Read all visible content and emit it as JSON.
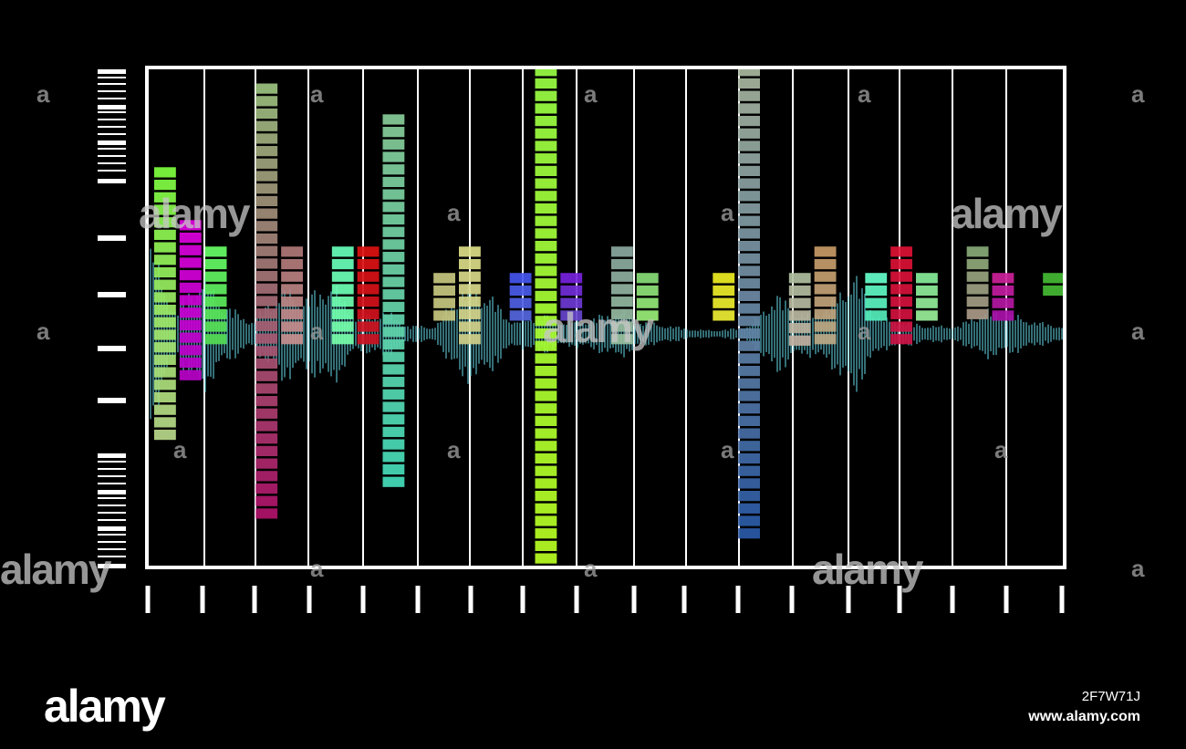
{
  "colors": {
    "background": "#000000",
    "frame": "#ffffff",
    "gridline": "#ffffff",
    "waveform": "#5fc8d8"
  },
  "watermark": {
    "logo_text": "alamy",
    "image_id": "2F7W71J",
    "site_url": "www.alamy.com",
    "tile_text": "alamy",
    "tile_letter": "a"
  },
  "chart_data": {
    "type": "bar",
    "title": "",
    "xlabel": "",
    "ylabel": "",
    "grid": true,
    "legend": "none",
    "ylim": [
      -6,
      6
    ],
    "columns": 36,
    "bars": [
      {
        "col": 0,
        "top": 3.7,
        "bottom": -2.4,
        "color_top": "#7fff3f",
        "color_bottom": "#b8d88a"
      },
      {
        "col": 1,
        "top": 2.5,
        "bottom": -1.2,
        "color_top": "#e000e0",
        "color_bottom": "#b800c8"
      },
      {
        "col": 2,
        "top": 1.9,
        "bottom": -0.5,
        "color_top": "#66ff66",
        "color_bottom": "#55dd55"
      },
      {
        "col": 4,
        "top": 5.6,
        "bottom": -4.2,
        "color_top": "#9cc280",
        "color_bottom": "#b0126a"
      },
      {
        "col": 5,
        "top": 1.9,
        "bottom": -0.5,
        "color_top": "#b07878",
        "color_bottom": "#c89090"
      },
      {
        "col": 7,
        "top": 1.9,
        "bottom": -0.5,
        "color_top": "#66ffbb",
        "color_bottom": "#77ffaa"
      },
      {
        "col": 8,
        "top": 1.9,
        "bottom": -0.5,
        "color_top": "#dd1111",
        "color_bottom": "#cc1122"
      },
      {
        "col": 9,
        "top": 4.9,
        "bottom": -3.6,
        "color_top": "#88cc99",
        "color_bottom": "#44ddbb"
      },
      {
        "col": 11,
        "top": 1.3,
        "bottom": 0.1,
        "color_top": "#c8c880",
        "color_bottom": "#c8c880"
      },
      {
        "col": 12,
        "top": 1.9,
        "bottom": -0.5,
        "color_top": "#dddd88",
        "color_bottom": "#d0d08a"
      },
      {
        "col": 14,
        "top": 1.3,
        "bottom": 0.1,
        "color_top": "#4455ee",
        "color_bottom": "#5566dd"
      },
      {
        "col": 15,
        "top": 6.0,
        "bottom": -5.4,
        "color_top": "#99ff44",
        "color_bottom": "#b8ff22"
      },
      {
        "col": 16,
        "top": 1.3,
        "bottom": 0.1,
        "color_top": "#7722dd",
        "color_bottom": "#6644cc"
      },
      {
        "col": 18,
        "top": 1.9,
        "bottom": -0.5,
        "color_top": "#8aa8a0",
        "color_bottom": "#99c0a0"
      },
      {
        "col": 19,
        "top": 1.3,
        "bottom": 0.1,
        "color_top": "#88dd77",
        "color_bottom": "#99ee77"
      },
      {
        "col": 22,
        "top": 1.3,
        "bottom": 0.1,
        "color_top": "#eeee22",
        "color_bottom": "#eeee33"
      },
      {
        "col": 23,
        "top": 6.0,
        "bottom": -4.7,
        "color_top": "#aab8a0",
        "color_bottom": "#2a5aa8"
      },
      {
        "col": 25,
        "top": 1.3,
        "bottom": -0.5,
        "color_top": "#b0c0a0",
        "color_bottom": "#c0b0a0"
      },
      {
        "col": 26,
        "top": 1.9,
        "bottom": -0.5,
        "color_top": "#c89a66",
        "color_bottom": "#bbaa88"
      },
      {
        "col": 28,
        "top": 1.3,
        "bottom": 0.1,
        "color_top": "#66ffcc",
        "color_bottom": "#55eebb"
      },
      {
        "col": 29,
        "top": 1.9,
        "bottom": -0.5,
        "color_top": "#dd1133",
        "color_bottom": "#cc1144"
      },
      {
        "col": 30,
        "top": 1.3,
        "bottom": 0.1,
        "color_top": "#88ee99",
        "color_bottom": "#99ee99"
      },
      {
        "col": 32,
        "top": 1.9,
        "bottom": 0.1,
        "color_top": "#88aa77",
        "color_bottom": "#aa9988"
      },
      {
        "col": 33,
        "top": 1.3,
        "bottom": 0.1,
        "color_top": "#cc2299",
        "color_bottom": "#aa11aa"
      },
      {
        "col": 35,
        "top": 1.3,
        "bottom": 0.7,
        "color_top": "#44bb33",
        "color_bottom": "#44bb33"
      }
    ],
    "waveform_amplitude": [
      2.3,
      0.6,
      1.5,
      0.7,
      0.3,
      1.2,
      0.9,
      1.3,
      0.4,
      0.6,
      0.2,
      0.2,
      1.2,
      1.0,
      0.3,
      0.5,
      0.3,
      0.4,
      0.6,
      0.3,
      0.2,
      0.1,
      0.1,
      0.2,
      1.0,
      0.5,
      0.7,
      1.5,
      0.4,
      0.3,
      0.2,
      0.2,
      0.6,
      0.5,
      0.3,
      0.2
    ]
  }
}
